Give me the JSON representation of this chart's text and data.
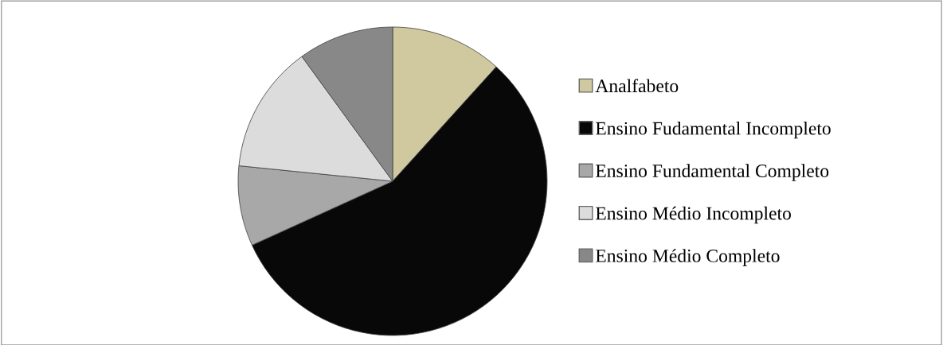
{
  "chart_data": {
    "type": "pie",
    "categories": [
      "Analfabeto",
      "Ensino Fudamental Incompleto",
      "Ensino Fundamental Completo",
      "Ensino Médio Incompleto",
      "Ensino Médio Completo"
    ],
    "values": [
      11.7,
      56.5,
      8.4,
      13.4,
      10.0
    ],
    "colors": [
      "#d0c9a0",
      "#080808",
      "#a8a8a8",
      "#dcdcdc",
      "#888888"
    ],
    "legend": "right"
  }
}
